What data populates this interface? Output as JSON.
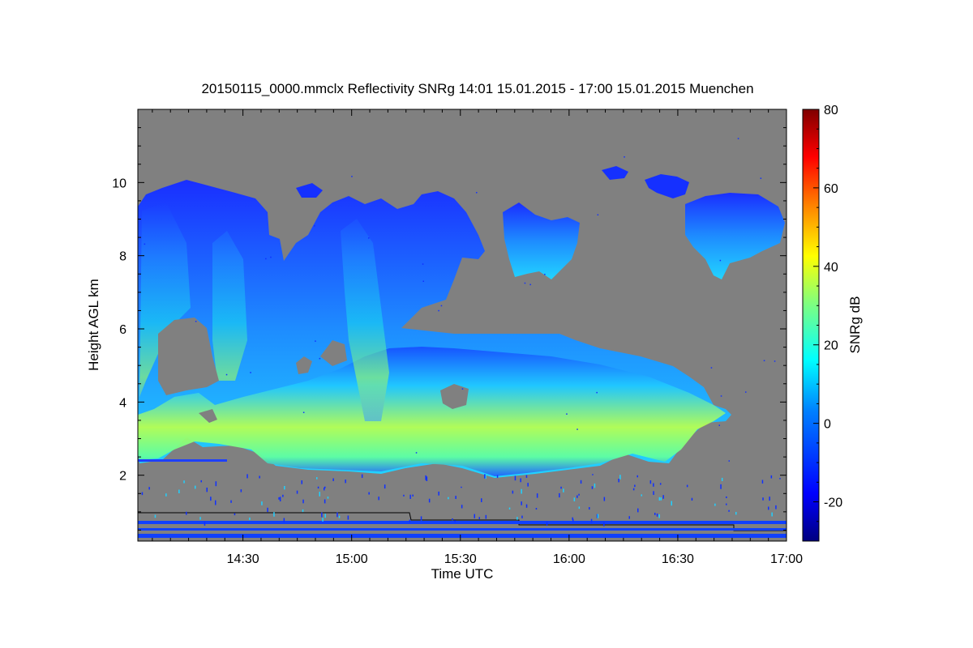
{
  "chart_data": {
    "type": "heatmap",
    "title": "20150115_0000.mmclx Reflectivity SNRg   14:01 15.01.2015 - 17:00 15.01.2015 Muenchen",
    "xlabel": "Time UTC",
    "ylabel": "Height AGL km",
    "colorbar_label": "SNRg dB",
    "x_range": [
      "14:01",
      "17:00"
    ],
    "y_range": [
      0.2,
      12
    ],
    "x_ticks": [
      "14:30",
      "15:00",
      "15:30",
      "16:00",
      "16:30",
      "17:00"
    ],
    "y_ticks": [
      "2",
      "4",
      "6",
      "8",
      "10"
    ],
    "colorbar_range": [
      -30,
      80
    ],
    "colorbar_ticks": [
      "-20",
      "0",
      "20",
      "40",
      "60",
      "80"
    ],
    "background_color": "#808080",
    "colormap": [
      "#00007f",
      "#0000ff",
      "#007fff",
      "#00ffff",
      "#7fff7f",
      "#ffff00",
      "#ff7f00",
      "#ff0000",
      "#7f0000"
    ]
  }
}
